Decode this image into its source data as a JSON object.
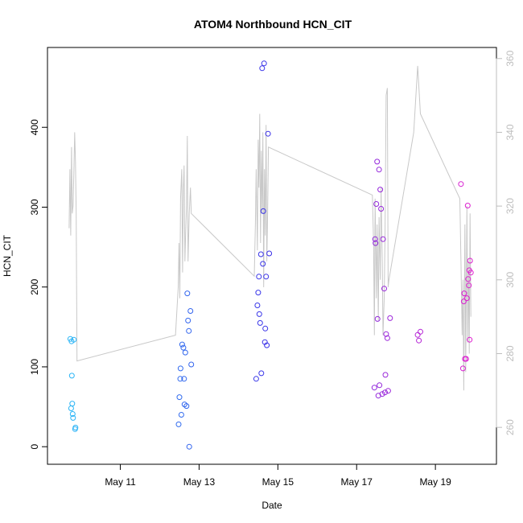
{
  "chart_data": {
    "type": "scatter",
    "title": "ATOM4 Northbound HCN_CIT",
    "xlabel": "Date",
    "ylabel": "HCN_CIT",
    "x_ticks": [
      {
        "value": 11,
        "label": "May 11"
      },
      {
        "value": 13,
        "label": "May 13"
      },
      {
        "value": 15,
        "label": "May 15"
      },
      {
        "value": 17,
        "label": "May 17"
      },
      {
        "value": 19,
        "label": "May 19"
      }
    ],
    "y_ticks": [
      0,
      100,
      200,
      300,
      400
    ],
    "y2_ticks": [
      260,
      280,
      300,
      320,
      340,
      360
    ],
    "xlim": [
      9.15,
      20.55
    ],
    "ylim": [
      -22,
      500
    ],
    "y2lim": [
      250,
      363
    ],
    "grid": false,
    "colors": {
      "line": "#c8c8c8",
      "right_axis": "#bdbdbd",
      "scatter_start": "#29b6f6",
      "scatter_mid": "#3a2fe8",
      "scatter_end": "#e01fd0"
    },
    "scatter": [
      [
        9.73,
        135
      ],
      [
        9.76,
        132
      ],
      [
        9.82,
        134
      ],
      [
        9.75,
        48
      ],
      [
        9.78,
        54
      ],
      [
        9.79,
        41
      ],
      [
        9.8,
        36
      ],
      [
        9.77,
        89
      ],
      [
        9.85,
        22
      ],
      [
        9.86,
        24
      ],
      [
        12.48,
        28
      ],
      [
        12.5,
        62
      ],
      [
        12.52,
        85
      ],
      [
        12.53,
        98
      ],
      [
        12.55,
        40
      ],
      [
        12.57,
        128
      ],
      [
        12.6,
        124
      ],
      [
        12.63,
        53
      ],
      [
        12.65,
        118
      ],
      [
        12.68,
        51
      ],
      [
        12.7,
        192
      ],
      [
        12.72,
        158
      ],
      [
        12.74,
        145
      ],
      [
        12.75,
        0
      ],
      [
        12.78,
        170
      ],
      [
        12.8,
        103
      ],
      [
        12.62,
        85
      ],
      [
        14.45,
        85
      ],
      [
        14.48,
        177
      ],
      [
        14.5,
        193
      ],
      [
        14.52,
        213
      ],
      [
        14.53,
        166
      ],
      [
        14.55,
        155
      ],
      [
        14.57,
        241
      ],
      [
        14.58,
        92
      ],
      [
        14.6,
        474
      ],
      [
        14.62,
        229
      ],
      [
        14.63,
        295
      ],
      [
        14.65,
        480
      ],
      [
        14.67,
        131
      ],
      [
        14.68,
        148
      ],
      [
        14.7,
        213
      ],
      [
        14.72,
        127
      ],
      [
        14.75,
        392
      ],
      [
        14.78,
        242
      ],
      [
        17.45,
        74
      ],
      [
        17.47,
        260
      ],
      [
        17.48,
        255
      ],
      [
        17.5,
        304
      ],
      [
        17.52,
        357
      ],
      [
        17.53,
        160
      ],
      [
        17.55,
        64
      ],
      [
        17.57,
        347
      ],
      [
        17.58,
        77
      ],
      [
        17.6,
        322
      ],
      [
        17.62,
        298
      ],
      [
        17.65,
        66
      ],
      [
        17.67,
        260
      ],
      [
        17.7,
        198
      ],
      [
        17.72,
        68
      ],
      [
        17.73,
        90
      ],
      [
        17.75,
        141
      ],
      [
        17.78,
        136
      ],
      [
        17.8,
        70
      ],
      [
        17.85,
        161
      ],
      [
        18.55,
        140
      ],
      [
        18.58,
        133
      ],
      [
        18.62,
        144
      ],
      [
        19.65,
        329
      ],
      [
        19.7,
        98
      ],
      [
        19.72,
        182
      ],
      [
        19.73,
        192
      ],
      [
        19.75,
        110
      ],
      [
        19.78,
        110
      ],
      [
        19.8,
        186
      ],
      [
        19.82,
        302
      ],
      [
        19.83,
        210
      ],
      [
        19.85,
        202
      ],
      [
        19.86,
        221
      ],
      [
        19.87,
        134
      ],
      [
        19.88,
        233
      ],
      [
        19.9,
        218
      ]
    ],
    "line": [
      [
        9.7,
        314
      ],
      [
        9.72,
        330
      ],
      [
        9.74,
        312
      ],
      [
        9.76,
        336
      ],
      [
        9.78,
        318
      ],
      [
        9.8,
        320
      ],
      [
        9.82,
        329
      ],
      [
        9.84,
        340
      ],
      [
        9.86,
        332
      ],
      [
        9.88,
        318
      ],
      [
        9.9,
        278
      ],
      [
        12.4,
        285
      ],
      [
        12.47,
        298
      ],
      [
        12.49,
        310
      ],
      [
        12.51,
        295
      ],
      [
        12.53,
        322
      ],
      [
        12.56,
        330
      ],
      [
        12.58,
        302
      ],
      [
        12.6,
        325
      ],
      [
        12.62,
        331
      ],
      [
        12.64,
        305
      ],
      [
        12.66,
        313
      ],
      [
        12.68,
        320
      ],
      [
        12.7,
        339
      ],
      [
        12.72,
        305
      ],
      [
        12.75,
        318
      ],
      [
        12.78,
        325
      ],
      [
        12.8,
        318
      ],
      [
        14.4,
        301
      ],
      [
        14.43,
        315
      ],
      [
        14.45,
        330
      ],
      [
        14.48,
        308
      ],
      [
        14.5,
        338
      ],
      [
        14.52,
        325
      ],
      [
        14.54,
        345
      ],
      [
        14.56,
        310
      ],
      [
        14.58,
        335
      ],
      [
        14.6,
        318
      ],
      [
        14.62,
        340
      ],
      [
        14.64,
        298
      ],
      [
        14.66,
        330
      ],
      [
        14.68,
        312
      ],
      [
        14.7,
        342
      ],
      [
        14.72,
        305
      ],
      [
        14.74,
        318
      ],
      [
        14.76,
        336
      ],
      [
        17.4,
        323
      ],
      [
        17.43,
        310
      ],
      [
        17.45,
        285
      ],
      [
        17.47,
        322
      ],
      [
        17.5,
        295
      ],
      [
        17.52,
        315
      ],
      [
        17.55,
        289
      ],
      [
        17.57,
        317
      ],
      [
        17.6,
        300
      ],
      [
        17.62,
        325
      ],
      [
        17.65,
        305
      ],
      [
        17.67,
        285
      ],
      [
        17.7,
        295
      ],
      [
        17.72,
        312
      ],
      [
        17.75,
        350
      ],
      [
        17.78,
        352
      ],
      [
        17.8,
        298
      ],
      [
        17.82,
        300
      ],
      [
        18.45,
        340
      ],
      [
        18.55,
        358
      ],
      [
        18.62,
        345
      ],
      [
        19.62,
        322
      ],
      [
        19.65,
        305
      ],
      [
        19.68,
        285
      ],
      [
        19.7,
        300
      ],
      [
        19.72,
        270
      ],
      [
        19.75,
        315
      ],
      [
        19.77,
        275
      ],
      [
        19.8,
        320
      ],
      [
        19.82,
        283
      ],
      [
        19.84,
        305
      ],
      [
        19.86,
        280
      ],
      [
        19.88,
        318
      ],
      [
        19.9,
        290
      ]
    ]
  }
}
